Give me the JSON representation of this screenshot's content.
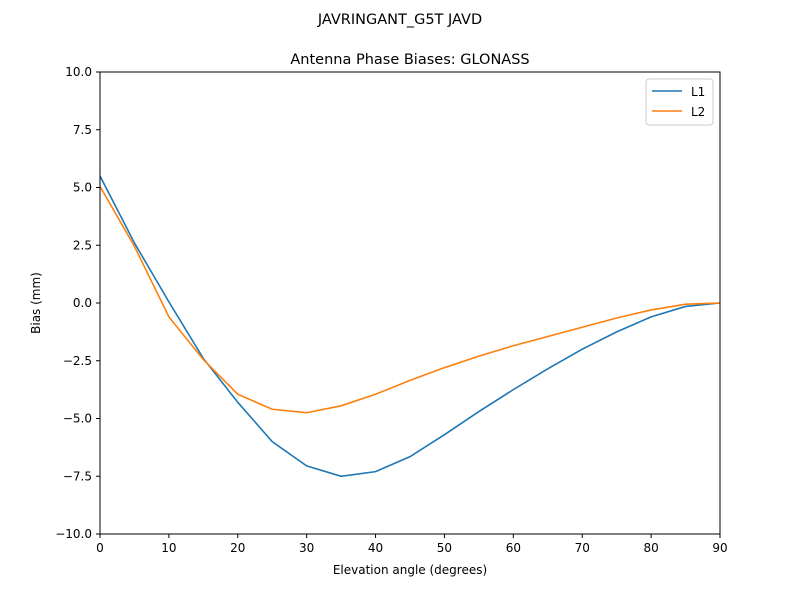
{
  "chart_data": {
    "type": "line",
    "suptitle": "JAVRINGANT_G5T  JAVD",
    "title": "Antenna Phase Biases: GLONASS",
    "xlabel": "Elevation angle (degrees)",
    "ylabel": "Bias (mm)",
    "xlim": [
      0,
      90
    ],
    "ylim": [
      -10,
      10
    ],
    "xticks": [
      "0",
      "10",
      "20",
      "30",
      "40",
      "50",
      "60",
      "70",
      "80",
      "90"
    ],
    "yticks": [
      "−10.0",
      "−7.5",
      "−5.0",
      "−2.5",
      "0.0",
      "2.5",
      "5.0",
      "7.5",
      "10.0"
    ],
    "grid": false,
    "legend_position": "top-right",
    "x": [
      0,
      5,
      10,
      15,
      20,
      25,
      30,
      35,
      40,
      45,
      50,
      55,
      60,
      65,
      70,
      75,
      80,
      85,
      90
    ],
    "series": [
      {
        "name": "L1",
        "color": "#1f77b4",
        "values": [
          5.5,
          2.6,
          0.05,
          -2.4,
          -4.3,
          -6.0,
          -7.05,
          -7.5,
          -7.3,
          -6.65,
          -5.7,
          -4.7,
          -3.75,
          -2.85,
          -2.0,
          -1.25,
          -0.6,
          -0.15,
          0.0
        ]
      },
      {
        "name": "L2",
        "color": "#ff7f0e",
        "values": [
          5.05,
          2.45,
          -0.6,
          -2.45,
          -3.95,
          -4.6,
          -4.75,
          -4.45,
          -3.95,
          -3.35,
          -2.8,
          -2.3,
          -1.85,
          -1.45,
          -1.05,
          -0.65,
          -0.3,
          -0.05,
          0.0
        ]
      }
    ]
  }
}
